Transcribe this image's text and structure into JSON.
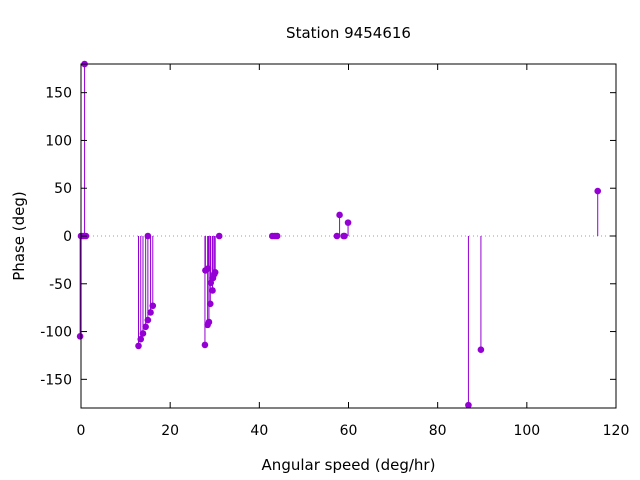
{
  "chart_data": {
    "type": "scatter",
    "style": "impulses-with-points",
    "title": "Station 9454616",
    "xlabel": "Angular speed (deg/hr)",
    "ylabel": "Phase (deg)",
    "xlim": [
      0,
      120
    ],
    "ylim": [
      -180,
      180
    ],
    "xticks": [
      0,
      20,
      40,
      60,
      80,
      100,
      120
    ],
    "yticks": [
      -150,
      -100,
      -50,
      0,
      50,
      100,
      150
    ],
    "xtick_labels": [
      "0",
      "20",
      "40",
      "60",
      "80",
      "100",
      "120"
    ],
    "ytick_labels": [
      "-150",
      "-100",
      "-50",
      "0",
      "50",
      "100",
      "150"
    ],
    "zero_line": true,
    "grid": false,
    "color": "#9400d3",
    "series": [
      {
        "points": [
          [
            -0.2,
            -105
          ],
          [
            0.0,
            0
          ],
          [
            0.5,
            0
          ],
          [
            0.8,
            180
          ],
          [
            1.1,
            0
          ],
          [
            12.9,
            -115
          ],
          [
            13.4,
            -108
          ],
          [
            13.9,
            -102
          ],
          [
            14.5,
            -95
          ],
          [
            15.0,
            -88
          ],
          [
            15.0,
            0
          ],
          [
            15.6,
            -80
          ],
          [
            16.1,
            -73
          ],
          [
            27.8,
            -114
          ],
          [
            27.9,
            -36
          ],
          [
            28.4,
            -93
          ],
          [
            28.5,
            -34
          ],
          [
            28.7,
            -90
          ],
          [
            29.0,
            -71
          ],
          [
            29.1,
            -49
          ],
          [
            29.5,
            -57
          ],
          [
            29.6,
            -44
          ],
          [
            29.9,
            -40
          ],
          [
            30.1,
            -38
          ],
          [
            31.0,
            0
          ],
          [
            42.9,
            0
          ],
          [
            43.5,
            0
          ],
          [
            44.0,
            0
          ],
          [
            57.4,
            0
          ],
          [
            58.0,
            22
          ],
          [
            58.9,
            0
          ],
          [
            59.1,
            0
          ],
          [
            59.9,
            14
          ],
          [
            86.9,
            -177
          ],
          [
            89.7,
            -119
          ],
          [
            115.9,
            47
          ]
        ]
      }
    ]
  }
}
